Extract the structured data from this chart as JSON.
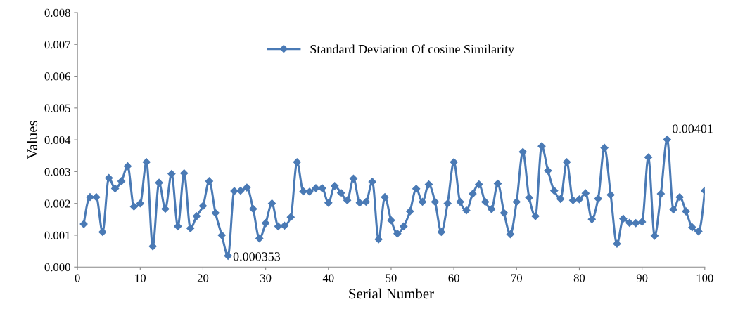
{
  "chart_data": {
    "type": "line",
    "xlabel": "Serial Number",
    "ylabel": "Values",
    "x": [
      1,
      2,
      3,
      4,
      5,
      6,
      7,
      8,
      9,
      10,
      11,
      12,
      13,
      14,
      15,
      16,
      17,
      18,
      19,
      20,
      21,
      22,
      23,
      24,
      25,
      26,
      27,
      28,
      29,
      30,
      31,
      32,
      33,
      34,
      35,
      36,
      37,
      38,
      39,
      40,
      41,
      42,
      43,
      44,
      45,
      46,
      47,
      48,
      49,
      50,
      51,
      52,
      53,
      54,
      55,
      56,
      57,
      58,
      59,
      60,
      61,
      62,
      63,
      64,
      65,
      66,
      67,
      68,
      69,
      70,
      71,
      72,
      73,
      74,
      75,
      76,
      77,
      78,
      79,
      80,
      81,
      82,
      83,
      84,
      85,
      86,
      87,
      88,
      89,
      90,
      91,
      92,
      93,
      94,
      95,
      96,
      97,
      98,
      99,
      100
    ],
    "series": [
      {
        "name": "Standard Deviation Of cosine Similarity",
        "color": "#4a7ab5",
        "values": [
          0.00135,
          0.0022,
          0.0022,
          0.0011,
          0.0028,
          0.00247,
          0.0027,
          0.00317,
          0.0019,
          0.002,
          0.0033,
          0.00065,
          0.00265,
          0.00183,
          0.00293,
          0.00128,
          0.00295,
          0.00122,
          0.0016,
          0.00192,
          0.0027,
          0.0017,
          0.001,
          0.000353,
          0.00239,
          0.0024,
          0.0025,
          0.00183,
          0.0009,
          0.00138,
          0.002,
          0.00128,
          0.0013,
          0.00157,
          0.0033,
          0.00238,
          0.00237,
          0.00248,
          0.00248,
          0.00202,
          0.00255,
          0.00233,
          0.0021,
          0.00278,
          0.00202,
          0.00205,
          0.00268,
          0.00087,
          0.0022,
          0.00147,
          0.00105,
          0.00128,
          0.00175,
          0.00246,
          0.00205,
          0.0026,
          0.00205,
          0.0011,
          0.002,
          0.0033,
          0.00205,
          0.00178,
          0.0023,
          0.0026,
          0.00205,
          0.00182,
          0.00262,
          0.0017,
          0.00103,
          0.00205,
          0.00362,
          0.00218,
          0.0016,
          0.0038,
          0.00303,
          0.0024,
          0.00214,
          0.0033,
          0.0021,
          0.00213,
          0.00232,
          0.0015,
          0.00215,
          0.00375,
          0.00227,
          0.00073,
          0.00152,
          0.00139,
          0.00138,
          0.00142,
          0.00345,
          0.00098,
          0.0023,
          0.00401,
          0.00181,
          0.0022,
          0.00175,
          0.00125,
          0.00112,
          0.0024
        ]
      }
    ],
    "xlim": [
      0,
      100
    ],
    "xticks": [
      0,
      10,
      20,
      30,
      40,
      50,
      60,
      70,
      80,
      90,
      100
    ],
    "ylim": [
      0,
      0.008
    ],
    "yticks": [
      {
        "value": 0,
        "label": "0.000"
      },
      {
        "value": 0.001,
        "label": "0.001"
      },
      {
        "value": 0.002,
        "label": "0.002"
      },
      {
        "value": 0.003,
        "label": "0.003"
      },
      {
        "value": 0.004,
        "label": "0.004"
      },
      {
        "value": 0.005,
        "label": "0.005"
      },
      {
        "value": 0.006,
        "label": "0.006"
      },
      {
        "value": 0.007,
        "label": "0.007"
      },
      {
        "value": 0.008,
        "label": "0.008"
      }
    ],
    "annotations": [
      {
        "text": "0.000353",
        "x": 24,
        "y": 0.000353
      },
      {
        "text": "0.00401",
        "x": 94,
        "y": 0.00401
      }
    ],
    "legend": "top",
    "marker": "diamond",
    "line_style": "solid",
    "grid": false
  }
}
